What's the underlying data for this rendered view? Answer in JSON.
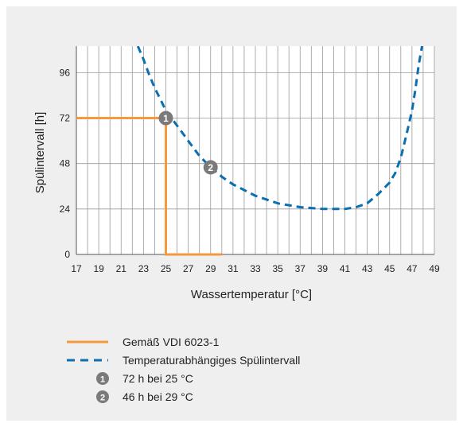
{
  "chart_data": {
    "type": "line",
    "xlabel": "Wassertemperatur [°C]",
    "ylabel": "Spülintervall [h]",
    "xlim": [
      17,
      49
    ],
    "ylim": [
      0,
      110
    ],
    "x_ticks": [
      17,
      19,
      21,
      23,
      25,
      27,
      29,
      31,
      33,
      35,
      37,
      39,
      41,
      43,
      45,
      47,
      49
    ],
    "y_ticks": [
      0,
      24,
      48,
      72,
      96
    ],
    "grid": true,
    "legend_position": "bottom-left",
    "series": [
      {
        "name": "Gemäß VDI 6023-1",
        "style": "solid",
        "color": "#f39a3c",
        "points": [
          [
            17,
            72
          ],
          [
            25,
            72
          ],
          [
            25,
            0
          ],
          [
            30,
            0
          ]
        ]
      },
      {
        "name": "Temperaturabhängiges Spülintervall",
        "style": "dashed",
        "color": "#0a6fb0",
        "points": [
          [
            22.5,
            110
          ],
          [
            23,
            103
          ],
          [
            23.5,
            95
          ],
          [
            24,
            88
          ],
          [
            24.5,
            82
          ],
          [
            25,
            76
          ],
          [
            26,
            68
          ],
          [
            27,
            60
          ],
          [
            28,
            52
          ],
          [
            29,
            46
          ],
          [
            30,
            41
          ],
          [
            31,
            37
          ],
          [
            32,
            34
          ],
          [
            33,
            31
          ],
          [
            34,
            29
          ],
          [
            35,
            27
          ],
          [
            36,
            26
          ],
          [
            37,
            25
          ],
          [
            38,
            24.5
          ],
          [
            39,
            24
          ],
          [
            40,
            24
          ],
          [
            41,
            24
          ],
          [
            42,
            25
          ],
          [
            43,
            27
          ],
          [
            44,
            32
          ],
          [
            45,
            38
          ],
          [
            45.5,
            43
          ],
          [
            46,
            51
          ],
          [
            46.5,
            63
          ],
          [
            47,
            76
          ],
          [
            47.3,
            87
          ],
          [
            47.6,
            100
          ],
          [
            47.9,
            110
          ]
        ]
      }
    ],
    "annotations": [
      {
        "label": "1",
        "x": 25,
        "y": 72,
        "text": "72 h bei 25 °C"
      },
      {
        "label": "2",
        "x": 29,
        "y": 46,
        "text": "46 h bei 29 °C"
      }
    ]
  }
}
